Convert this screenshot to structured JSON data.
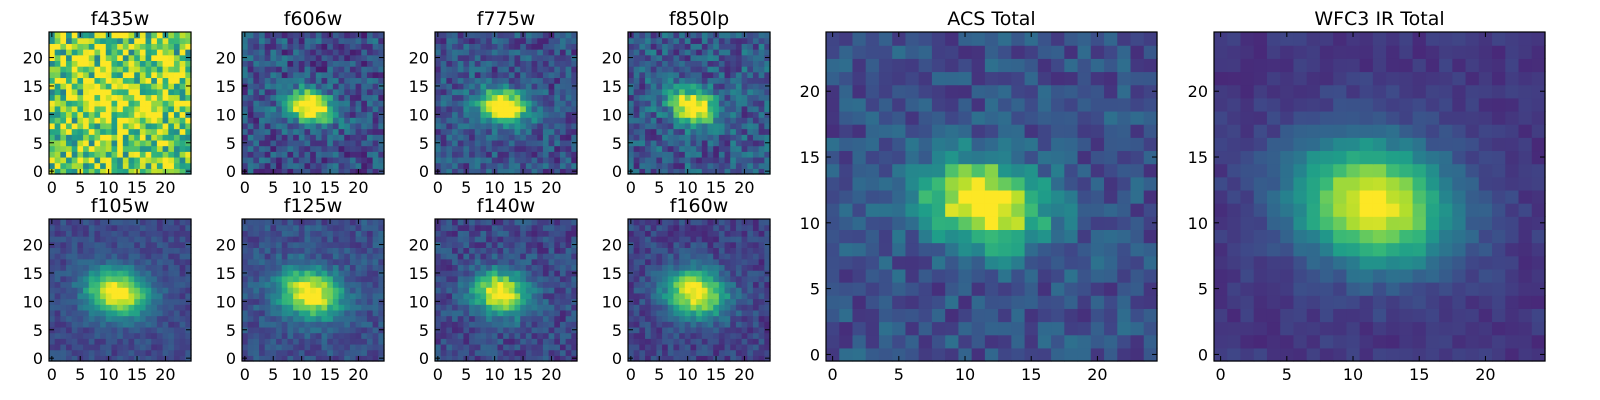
{
  "chart_data": {
    "type": "heatmap",
    "colormap": "viridis",
    "grid": false,
    "legend": "none",
    "value_range": [
      0,
      1
    ],
    "panels": [
      {
        "id": "f435w",
        "title": "f435w",
        "x_ticks": [
          "0",
          "5",
          "10",
          "15",
          "20"
        ],
        "y_ticks": [
          "0",
          "5",
          "10",
          "15",
          "20"
        ],
        "xlim": [
          -0.5,
          24.5
        ],
        "ylim": [
          -0.5,
          24.5
        ],
        "source": {
          "center": [
            11.5,
            11.5
          ],
          "sigma": [
            3.5,
            3.0
          ],
          "angle": -15,
          "peak": 0.15,
          "background": 0.78,
          "noise": 0.35
        }
      },
      {
        "id": "f606w",
        "title": "f606w",
        "x_ticks": [
          "0",
          "5",
          "10",
          "15",
          "20"
        ],
        "y_ticks": [
          "0",
          "5",
          "10",
          "15",
          "20"
        ],
        "xlim": [
          -0.5,
          24.5
        ],
        "ylim": [
          -0.5,
          24.5
        ],
        "source": {
          "center": [
            11.5,
            11.5
          ],
          "sigma": [
            3.0,
            1.9
          ],
          "angle": -15,
          "peak": 0.95,
          "background": 0.25,
          "noise": 0.18
        }
      },
      {
        "id": "f775w",
        "title": "f775w",
        "x_ticks": [
          "0",
          "5",
          "10",
          "15",
          "20"
        ],
        "y_ticks": [
          "0",
          "5",
          "10",
          "15",
          "20"
        ],
        "xlim": [
          -0.5,
          24.5
        ],
        "ylim": [
          -0.5,
          24.5
        ],
        "source": {
          "center": [
            11.5,
            11.5
          ],
          "sigma": [
            3.0,
            2.0
          ],
          "angle": -15,
          "peak": 0.95,
          "background": 0.25,
          "noise": 0.16
        }
      },
      {
        "id": "f850lp",
        "title": "f850lp",
        "x_ticks": [
          "0",
          "5",
          "10",
          "15",
          "20"
        ],
        "y_ticks": [
          "0",
          "5",
          "10",
          "15",
          "20"
        ],
        "xlim": [
          -0.5,
          24.5
        ],
        "ylim": [
          -0.5,
          24.5
        ],
        "source": {
          "center": [
            11.0,
            11.5
          ],
          "sigma": [
            2.8,
            2.0
          ],
          "angle": -15,
          "peak": 0.9,
          "background": 0.28,
          "noise": 0.18
        }
      },
      {
        "id": "f105w",
        "title": "f105w",
        "x_ticks": [
          "0",
          "5",
          "10",
          "15",
          "20"
        ],
        "y_ticks": [
          "0",
          "5",
          "10",
          "15",
          "20"
        ],
        "xlim": [
          -0.5,
          24.5
        ],
        "ylim": [
          -0.5,
          24.5
        ],
        "source": {
          "center": [
            11.5,
            11.5
          ],
          "sigma": [
            3.8,
            2.8
          ],
          "angle": -15,
          "peak": 0.85,
          "background": 0.22,
          "noise": 0.08
        }
      },
      {
        "id": "f125w",
        "title": "f125w",
        "x_ticks": [
          "0",
          "5",
          "10",
          "15",
          "20"
        ],
        "y_ticks": [
          "0",
          "5",
          "10",
          "15",
          "20"
        ],
        "xlim": [
          -0.5,
          24.5
        ],
        "ylim": [
          -0.5,
          24.5
        ],
        "source": {
          "center": [
            11.5,
            11.5
          ],
          "sigma": [
            3.8,
            2.8
          ],
          "angle": -15,
          "peak": 0.85,
          "background": 0.24,
          "noise": 0.1
        }
      },
      {
        "id": "f140w",
        "title": "f140w",
        "x_ticks": [
          "0",
          "5",
          "10",
          "15",
          "20"
        ],
        "y_ticks": [
          "0",
          "5",
          "10",
          "15",
          "20"
        ],
        "xlim": [
          -0.5,
          24.5
        ],
        "ylim": [
          -0.5,
          24.5
        ],
        "source": {
          "center": [
            11.0,
            11.5
          ],
          "sigma": [
            3.3,
            2.6
          ],
          "angle": -15,
          "peak": 0.85,
          "background": 0.22,
          "noise": 0.12
        }
      },
      {
        "id": "f160w",
        "title": "f160w",
        "x_ticks": [
          "0",
          "5",
          "10",
          "15",
          "20"
        ],
        "y_ticks": [
          "0",
          "5",
          "10",
          "15",
          "20"
        ],
        "xlim": [
          -0.5,
          24.5
        ],
        "ylim": [
          -0.5,
          24.5
        ],
        "source": {
          "center": [
            11.5,
            11.5
          ],
          "sigma": [
            3.8,
            2.8
          ],
          "angle": -15,
          "peak": 0.85,
          "background": 0.2,
          "noise": 0.1
        }
      },
      {
        "id": "acs-total",
        "title": "ACS Total",
        "x_ticks": [
          "0",
          "5",
          "10",
          "15",
          "20"
        ],
        "y_ticks": [
          "0",
          "5",
          "10",
          "15",
          "20"
        ],
        "xlim": [
          -0.5,
          24.5
        ],
        "ylim": [
          -0.5,
          24.5
        ],
        "source": {
          "center": [
            11.5,
            11.5
          ],
          "sigma": [
            3.2,
            2.2
          ],
          "angle": -15,
          "peak": 0.9,
          "background": 0.25,
          "noise": 0.12
        }
      },
      {
        "id": "wfc3-ir-total",
        "title": "WFC3 IR Total",
        "x_ticks": [
          "0",
          "5",
          "10",
          "15",
          "20"
        ],
        "y_ticks": [
          "0",
          "5",
          "10",
          "15",
          "20"
        ],
        "xlim": [
          -0.5,
          24.5
        ],
        "ylim": [
          -0.5,
          24.5
        ],
        "source": {
          "center": [
            11.5,
            11.5
          ],
          "sigma": [
            4.2,
            3.2
          ],
          "angle": -15,
          "peak": 0.85,
          "background": 0.16,
          "noise": 0.05
        }
      }
    ]
  }
}
